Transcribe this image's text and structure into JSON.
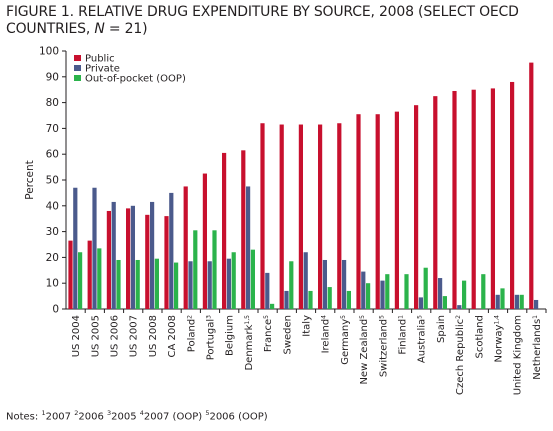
{
  "figure": {
    "title": "FIGURE 1. RELATIVE DRUG EXPENDITURE BY SOURCE, 2008 (SELECT OECD COUNTRIES, ",
    "title_n": "N",
    "title_tail": " = 21)",
    "notes_prefix": "Notes: ",
    "notes": [
      {
        "sup": "1",
        "text": "2007 "
      },
      {
        "sup": "2",
        "text": "2006 "
      },
      {
        "sup": "3",
        "text": "2005 "
      },
      {
        "sup": "4",
        "text": "2007 (OOP) "
      },
      {
        "sup": "5",
        "text": "2006 (OOP)"
      }
    ]
  },
  "chart_data": {
    "type": "bar",
    "ylabel": "Percent",
    "ylim": [
      0,
      100
    ],
    "yticks": [
      0,
      10,
      20,
      30,
      40,
      50,
      60,
      70,
      80,
      90,
      100
    ],
    "grid": false,
    "legend_placement": "top-left",
    "categories": [
      "US 2004",
      "US 2005",
      "US 2006",
      "US 2007",
      "US 2008",
      "CA 2008",
      "Poland",
      "Portugal",
      "Belgium",
      "Denmark",
      "France",
      "Sweden",
      "Italy",
      "Ireland",
      "Germany",
      "New Zealand",
      "Switzerland",
      "Finland",
      "Australia",
      "Spain",
      "Czech Republic",
      "Scotland",
      "Norway",
      "United Kingdom",
      "Netherlands"
    ],
    "category_sups": [
      "",
      "",
      "",
      "",
      "",
      "",
      "2",
      "3",
      "",
      "1,5",
      "5",
      "",
      "",
      "4",
      "5",
      "5",
      "5",
      "1",
      "5",
      "",
      "2",
      "",
      "1,4",
      "",
      "1"
    ],
    "series": [
      {
        "name": "Public",
        "color": "#c8102e",
        "values": [
          26.5,
          26.5,
          38,
          39,
          36.5,
          36,
          47.5,
          52.5,
          60.5,
          61.5,
          72,
          71.5,
          71.5,
          71.5,
          72,
          75.5,
          75.5,
          76.5,
          79,
          82.5,
          84.5,
          85,
          85.5,
          88,
          95.5
        ]
      },
      {
        "name": "Private",
        "color": "#4b5a8c",
        "values": [
          47,
          47,
          41.5,
          40,
          41.5,
          45,
          18.5,
          18.5,
          19.5,
          47.5,
          14,
          7,
          22,
          19,
          19,
          14.5,
          11,
          0,
          4.5,
          12,
          1.5,
          0,
          5.5,
          5.5,
          3.5
        ]
      },
      {
        "name": "Out-of-pocket (OOP)",
        "color": "#2bb34b",
        "values": [
          22,
          23.5,
          19,
          19,
          19.5,
          18,
          30.5,
          30.5,
          22,
          23,
          2,
          18.5,
          7,
          8.5,
          7,
          10,
          13.5,
          13.5,
          16,
          5,
          11,
          13.5,
          8,
          5.5,
          0
        ]
      }
    ]
  }
}
